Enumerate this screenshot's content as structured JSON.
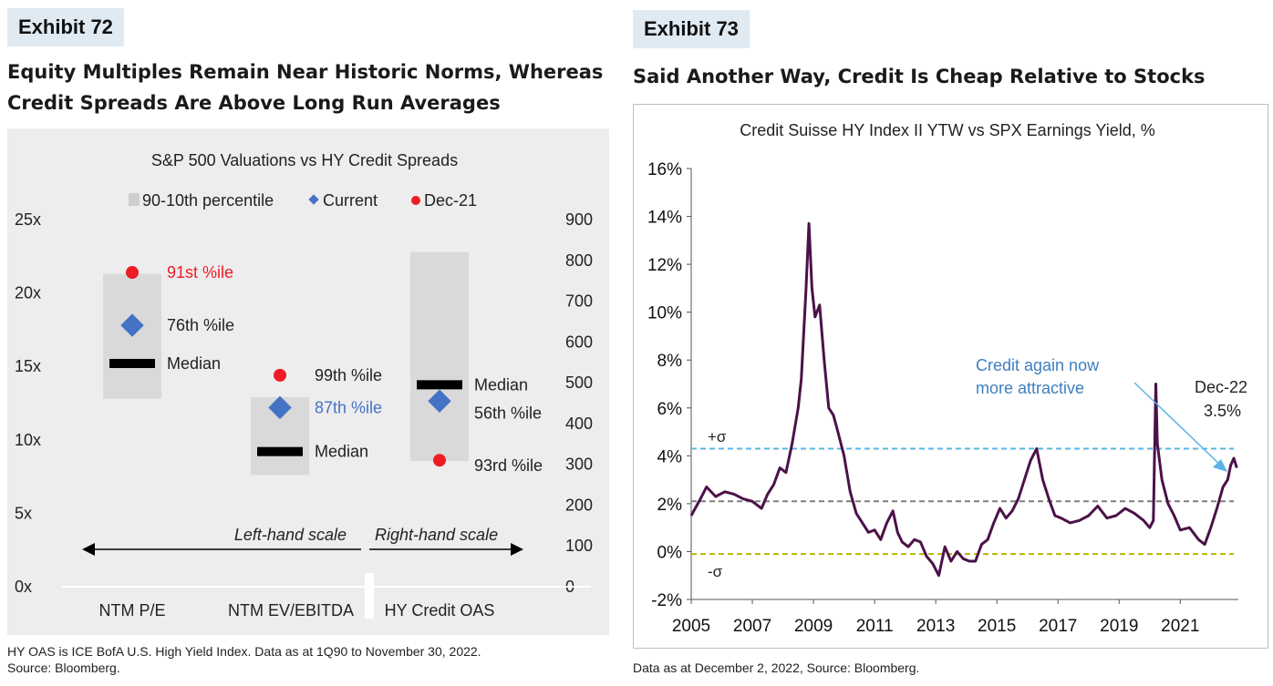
{
  "left": {
    "exhibit": "Exhibit 72",
    "title_line1": "Equity Multiples Remain Near Historic Norms, Whereas",
    "title_line2": "Credit Spreads Are Above Long Run Averages",
    "footnote_line1": "HY OAS is ICE BofA U.S. High Yield Index. Data as at 1Q90 to November 30, 2022.",
    "footnote_line2": "Source: Bloomberg."
  },
  "right": {
    "exhibit": "Exhibit 73",
    "title": "Said Another Way, Credit Is Cheap Relative to Stocks",
    "footnote": "Data as at December 2, 2022, Source: Bloomberg."
  },
  "chart_data": [
    {
      "type": "range",
      "title": "S&P 500 Valuations vs HY Credit Spreads",
      "legend": [
        "90-10th percentile",
        "Current",
        "Dec-21"
      ],
      "legend_position": "top",
      "colors": {
        "range": "#d9d9d9",
        "current": "#4472c4",
        "dec21": "#ee1c25",
        "median": "#000000",
        "background": "#ededed"
      },
      "left_axis": {
        "ticks": [
          "0x",
          "5x",
          "10x",
          "15x",
          "20x",
          "25x"
        ],
        "ylim": [
          0,
          25
        ]
      },
      "right_axis": {
        "ticks": [
          "0",
          "100",
          "200",
          "300",
          "400",
          "500",
          "600",
          "700",
          "800",
          "900"
        ],
        "ylim": [
          0,
          900
        ]
      },
      "scale_notes": {
        "left": "Left-hand scale",
        "right": "Right-hand scale"
      },
      "categories": [
        {
          "name": "NTM P/E",
          "axis": "left",
          "p10": 12.8,
          "p90": 21.3,
          "median": 15.2,
          "current": 17.8,
          "dec21": 21.4,
          "current_label": "76th %ile",
          "dec21_label": "91st %ile",
          "median_label": "Median"
        },
        {
          "name": "NTM EV/EBITDA",
          "axis": "left",
          "p10": 7.6,
          "p90": 12.9,
          "median": 9.2,
          "current": 12.2,
          "dec21": 14.4,
          "current_label": "87th %ile",
          "dec21_label": "99th %ile",
          "median_label": "Median"
        },
        {
          "name": "HY Credit OAS",
          "axis": "right",
          "p10": 308,
          "p90": 820,
          "median": 495,
          "current": 455,
          "dec21": 310,
          "current_label": "56th %ile",
          "dec21_label": "93rd %ile",
          "median_label": "Median"
        }
      ]
    },
    {
      "type": "line",
      "title": "Credit Suisse HY Index II YTW vs SPX Earnings Yield, %",
      "ylim": [
        -2,
        16
      ],
      "yticks": [
        "-2%",
        "0%",
        "2%",
        "4%",
        "6%",
        "8%",
        "10%",
        "12%",
        "14%",
        "16%"
      ],
      "xlim": [
        2005,
        2022.9
      ],
      "xticks": [
        "2005",
        "2007",
        "2009",
        "2011",
        "2013",
        "2015",
        "2017",
        "2019",
        "2021"
      ],
      "colors": {
        "line": "#4b1248",
        "plus_sigma": "#5bb4e5",
        "mean": "#7f7f7f",
        "minus_sigma": "#b5b800",
        "annotation": "#3d7fbf"
      },
      "reference_lines": [
        {
          "label": "+σ",
          "value": 4.3
        },
        {
          "label": "",
          "value": 2.1
        },
        {
          "label": "-σ",
          "value": -0.1
        }
      ],
      "annotations": [
        {
          "text_line1": "Credit again now",
          "text_line2": "more attractive"
        },
        {
          "text_line1": "Dec-22",
          "text_line2": "3.5%"
        }
      ],
      "series": [
        {
          "x": [
            2005.0,
            2005.3,
            2005.5,
            2005.8,
            2006.1,
            2006.4,
            2006.7,
            2007.0,
            2007.3,
            2007.5,
            2007.7,
            2007.9,
            2008.1,
            2008.3,
            2008.5,
            2008.6,
            2008.75,
            2008.85,
            2008.95,
            2009.05,
            2009.2,
            2009.35,
            2009.5,
            2009.65,
            2009.8,
            2010.0,
            2010.2,
            2010.4,
            2010.6,
            2010.8,
            2011.0,
            2011.2,
            2011.4,
            2011.6,
            2011.75,
            2011.9,
            2012.1,
            2012.3,
            2012.5,
            2012.7,
            2012.9,
            2013.1,
            2013.3,
            2013.5,
            2013.7,
            2013.9,
            2014.1,
            2014.3,
            2014.5,
            2014.7,
            2014.9,
            2015.1,
            2015.3,
            2015.5,
            2015.7,
            2015.9,
            2016.1,
            2016.3,
            2016.5,
            2016.7,
            2016.9,
            2017.1,
            2017.4,
            2017.7,
            2018.0,
            2018.3,
            2018.6,
            2018.9,
            2019.2,
            2019.5,
            2019.8,
            2020.0,
            2020.12,
            2020.2,
            2020.25,
            2020.4,
            2020.6,
            2020.8,
            2021.0,
            2021.3,
            2021.6,
            2021.8,
            2022.0,
            2022.2,
            2022.4,
            2022.55,
            2022.65,
            2022.75,
            2022.85
          ],
          "y": [
            1.5,
            2.2,
            2.7,
            2.3,
            2.5,
            2.4,
            2.2,
            2.1,
            1.8,
            2.4,
            2.8,
            3.5,
            3.3,
            4.5,
            6.0,
            7.2,
            10.8,
            13.7,
            11.0,
            9.8,
            10.3,
            8.0,
            6.0,
            5.7,
            5.0,
            4.0,
            2.5,
            1.6,
            1.2,
            0.8,
            0.9,
            0.5,
            1.2,
            1.7,
            0.8,
            0.4,
            0.2,
            0.5,
            0.4,
            -0.2,
            -0.5,
            -1.0,
            0.2,
            -0.4,
            0.0,
            -0.3,
            -0.4,
            -0.4,
            0.3,
            0.5,
            1.2,
            1.8,
            1.4,
            1.7,
            2.2,
            3.0,
            3.8,
            4.3,
            3.0,
            2.2,
            1.5,
            1.4,
            1.2,
            1.3,
            1.5,
            1.9,
            1.4,
            1.5,
            1.8,
            1.6,
            1.3,
            1.0,
            1.3,
            7.0,
            4.5,
            3.0,
            2.0,
            1.5,
            0.9,
            1.0,
            0.5,
            0.3,
            1.0,
            1.8,
            2.7,
            3.0,
            3.6,
            3.9,
            3.5
          ]
        }
      ]
    }
  ]
}
